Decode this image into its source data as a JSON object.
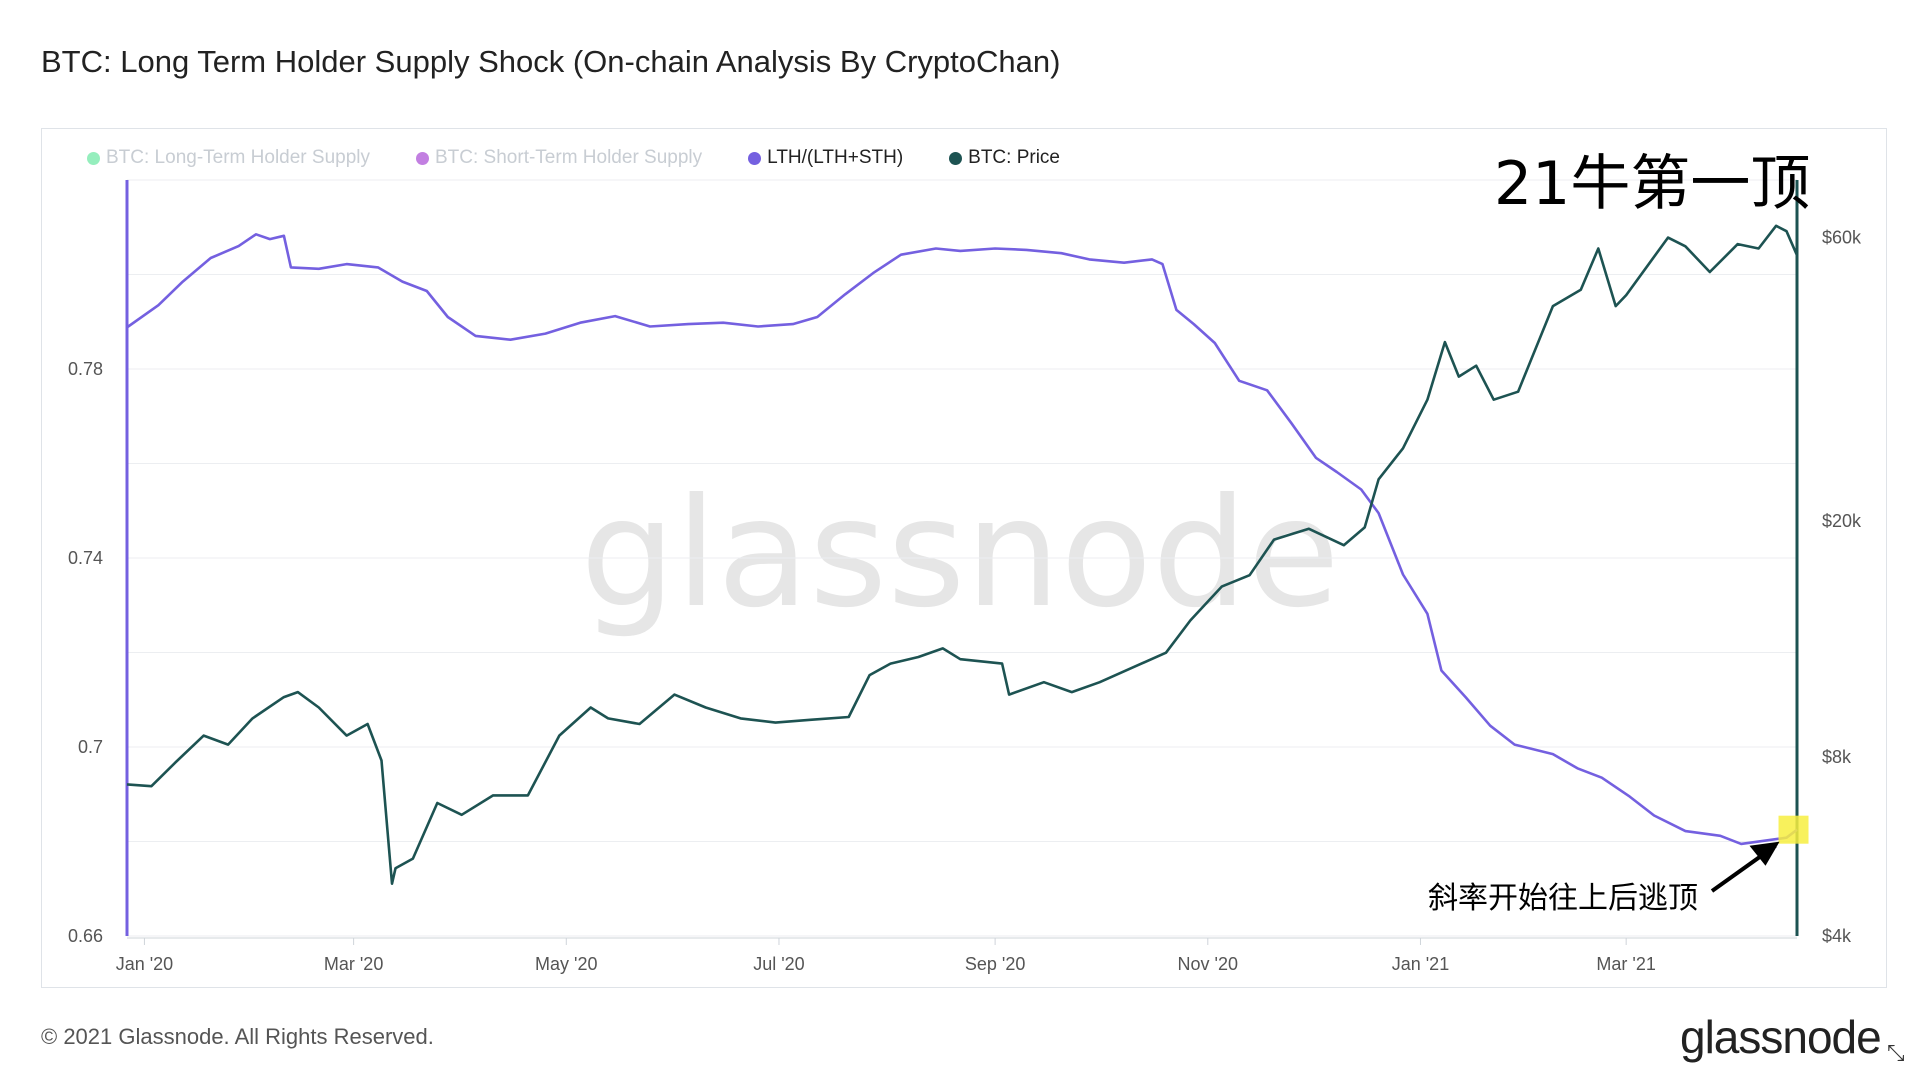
{
  "header": {
    "title": "BTC: Long Term Holder Supply Shock (On-chain Analysis By CryptoChan)"
  },
  "legend": [
    {
      "label": "BTC: Long-Term Holder Supply",
      "color": "#3ee087",
      "active": false
    },
    {
      "label": "BTC: Short-Term Holder Supply",
      "color": "#8f16c9",
      "active": false
    },
    {
      "label": "LTH/(LTH+STH)",
      "color": "#7460e0",
      "active": true
    },
    {
      "label": "BTC: Price",
      "color": "#1d5352",
      "active": true
    }
  ],
  "annotations": {
    "top": "21牛第一顶",
    "bottom": "斜率开始往上后逃顶"
  },
  "watermark": "glassnode",
  "footer": {
    "copyright": "© 2021 Glassnode. All Rights Reserved.",
    "logo": "glassnode"
  },
  "colors": {
    "ratio": "#7460e0",
    "price": "#1d5352",
    "highlight": "#f7ef3f",
    "grid": "#eceef1"
  },
  "chart_data": {
    "type": "line",
    "x_axis": {
      "type": "date",
      "range": [
        "2019-12-27",
        "2021-04-19"
      ],
      "ticks": [
        {
          "label": "Jan '20",
          "date": "2020-01-01"
        },
        {
          "label": "Mar '20",
          "date": "2020-03-01"
        },
        {
          "label": "May '20",
          "date": "2020-05-01"
        },
        {
          "label": "Jul '20",
          "date": "2020-07-01"
        },
        {
          "label": "Sep '20",
          "date": "2020-09-01"
        },
        {
          "label": "Nov '20",
          "date": "2020-11-01"
        },
        {
          "label": "Jan '21",
          "date": "2021-01-01"
        },
        {
          "label": "Mar '21",
          "date": "2021-03-01"
        }
      ]
    },
    "y_left": {
      "ticks": [
        "0.66",
        "0.7",
        "0.74",
        "0.78"
      ],
      "values": [
        0.66,
        0.7,
        0.74,
        0.78
      ],
      "range": [
        0.66,
        0.82
      ]
    },
    "y_right": {
      "scale": "log",
      "ticks": [
        "$4k",
        "$8k",
        "$20k",
        "$60k"
      ],
      "values": [
        4000,
        8000,
        20000,
        60000
      ],
      "range": [
        4000,
        75000
      ]
    },
    "series": [
      {
        "name": "LTH/(LTH+STH)",
        "axis": "left",
        "points": [
          [
            "2019-12-27",
            0.7888
          ],
          [
            "2020-01-05",
            0.7935
          ],
          [
            "2020-01-12",
            0.7985
          ],
          [
            "2020-01-20",
            0.8035
          ],
          [
            "2020-01-28",
            0.806
          ],
          [
            "2020-02-02",
            0.8085
          ],
          [
            "2020-02-06",
            0.8075
          ],
          [
            "2020-02-10",
            0.8082
          ],
          [
            "2020-02-12",
            0.8015
          ],
          [
            "2020-02-20",
            0.8012
          ],
          [
            "2020-02-28",
            0.8022
          ],
          [
            "2020-03-08",
            0.8015
          ],
          [
            "2020-03-15",
            0.7985
          ],
          [
            "2020-03-22",
            0.7965
          ],
          [
            "2020-03-28",
            0.791
          ],
          [
            "2020-04-05",
            0.787
          ],
          [
            "2020-04-15",
            0.7862
          ],
          [
            "2020-04-25",
            0.7875
          ],
          [
            "2020-05-05",
            0.7898
          ],
          [
            "2020-05-15",
            0.7912
          ],
          [
            "2020-05-25",
            0.789
          ],
          [
            "2020-06-05",
            0.7895
          ],
          [
            "2020-06-15",
            0.7898
          ],
          [
            "2020-06-25",
            0.789
          ],
          [
            "2020-07-05",
            0.7895
          ],
          [
            "2020-07-12",
            0.791
          ],
          [
            "2020-07-20",
            0.7958
          ],
          [
            "2020-07-28",
            0.8003
          ],
          [
            "2020-08-05",
            0.8042
          ],
          [
            "2020-08-15",
            0.8055
          ],
          [
            "2020-08-22",
            0.805
          ],
          [
            "2020-09-01",
            0.8055
          ],
          [
            "2020-09-10",
            0.8052
          ],
          [
            "2020-09-20",
            0.8045
          ],
          [
            "2020-09-28",
            0.8032
          ],
          [
            "2020-10-08",
            0.8025
          ],
          [
            "2020-10-16",
            0.8032
          ],
          [
            "2020-10-19",
            0.8022
          ],
          [
            "2020-10-23",
            0.7925
          ],
          [
            "2020-10-28",
            0.7895
          ],
          [
            "2020-11-03",
            0.7855
          ],
          [
            "2020-11-10",
            0.7775
          ],
          [
            "2020-11-18",
            0.7755
          ],
          [
            "2020-11-25",
            0.7685
          ],
          [
            "2020-12-02",
            0.7612
          ],
          [
            "2020-12-08",
            0.7582
          ],
          [
            "2020-12-15",
            0.7545
          ],
          [
            "2020-12-20",
            0.7495
          ],
          [
            "2020-12-27",
            0.7365
          ],
          [
            "2021-01-03",
            0.7282
          ],
          [
            "2021-01-07",
            0.7162
          ],
          [
            "2021-01-14",
            0.7105
          ],
          [
            "2021-01-21",
            0.7045
          ],
          [
            "2021-01-28",
            0.7005
          ],
          [
            "2021-02-08",
            0.6985
          ],
          [
            "2021-02-15",
            0.6955
          ],
          [
            "2021-02-22",
            0.6935
          ],
          [
            "2021-03-02",
            0.6895
          ],
          [
            "2021-03-09",
            0.6855
          ],
          [
            "2021-03-18",
            0.6822
          ],
          [
            "2021-03-28",
            0.6812
          ],
          [
            "2021-04-03",
            0.6795
          ],
          [
            "2021-04-10",
            0.6802
          ],
          [
            "2021-04-16",
            0.6808
          ],
          [
            "2021-04-19",
            0.6825
          ]
        ]
      },
      {
        "name": "BTC: Price",
        "axis": "right",
        "points": [
          [
            "2019-12-27",
            7200
          ],
          [
            "2020-01-03",
            7150
          ],
          [
            "2020-01-10",
            7850
          ],
          [
            "2020-01-18",
            8700
          ],
          [
            "2020-01-25",
            8400
          ],
          [
            "2020-02-01",
            9300
          ],
          [
            "2020-02-10",
            10100
          ],
          [
            "2020-02-14",
            10300
          ],
          [
            "2020-02-20",
            9700
          ],
          [
            "2020-02-28",
            8700
          ],
          [
            "2020-03-05",
            9100
          ],
          [
            "2020-03-09",
            7900
          ],
          [
            "2020-03-12",
            4900
          ],
          [
            "2020-03-13",
            5200
          ],
          [
            "2020-03-18",
            5400
          ],
          [
            "2020-03-25",
            6700
          ],
          [
            "2020-04-01",
            6400
          ],
          [
            "2020-04-10",
            6900
          ],
          [
            "2020-04-20",
            6900
          ],
          [
            "2020-04-29",
            8700
          ],
          [
            "2020-05-08",
            9700
          ],
          [
            "2020-05-13",
            9300
          ],
          [
            "2020-05-22",
            9100
          ],
          [
            "2020-06-01",
            10200
          ],
          [
            "2020-06-10",
            9700
          ],
          [
            "2020-06-20",
            9300
          ],
          [
            "2020-06-30",
            9150
          ],
          [
            "2020-07-10",
            9250
          ],
          [
            "2020-07-21",
            9350
          ],
          [
            "2020-07-27",
            11000
          ],
          [
            "2020-08-02",
            11500
          ],
          [
            "2020-08-10",
            11800
          ],
          [
            "2020-08-17",
            12200
          ],
          [
            "2020-08-22",
            11700
          ],
          [
            "2020-09-03",
            11500
          ],
          [
            "2020-09-05",
            10200
          ],
          [
            "2020-09-15",
            10700
          ],
          [
            "2020-09-23",
            10300
          ],
          [
            "2020-10-01",
            10700
          ],
          [
            "2020-10-10",
            11300
          ],
          [
            "2020-10-20",
            12000
          ],
          [
            "2020-10-27",
            13600
          ],
          [
            "2020-11-05",
            15500
          ],
          [
            "2020-11-13",
            16200
          ],
          [
            "2020-11-20",
            18600
          ],
          [
            "2020-11-25",
            19000
          ],
          [
            "2020-11-30",
            19400
          ],
          [
            "2020-12-10",
            18200
          ],
          [
            "2020-12-16",
            19500
          ],
          [
            "2020-12-20",
            23500
          ],
          [
            "2020-12-27",
            26500
          ],
          [
            "2021-01-03",
            32000
          ],
          [
            "2021-01-08",
            40000
          ],
          [
            "2021-01-12",
            35000
          ],
          [
            "2021-01-17",
            36500
          ],
          [
            "2021-01-22",
            32000
          ],
          [
            "2021-01-29",
            33000
          ],
          [
            "2021-02-08",
            46000
          ],
          [
            "2021-02-16",
            49000
          ],
          [
            "2021-02-21",
            57500
          ],
          [
            "2021-02-26",
            46000
          ],
          [
            "2021-03-01",
            48000
          ],
          [
            "2021-03-13",
            60000
          ],
          [
            "2021-03-18",
            58000
          ],
          [
            "2021-03-25",
            52500
          ],
          [
            "2021-04-02",
            58500
          ],
          [
            "2021-04-08",
            57500
          ],
          [
            "2021-04-13",
            62800
          ],
          [
            "2021-04-16",
            61500
          ],
          [
            "2021-04-19",
            56000
          ]
        ]
      }
    ],
    "highlight": {
      "date": "2021-04-18",
      "value": 0.6825
    }
  }
}
